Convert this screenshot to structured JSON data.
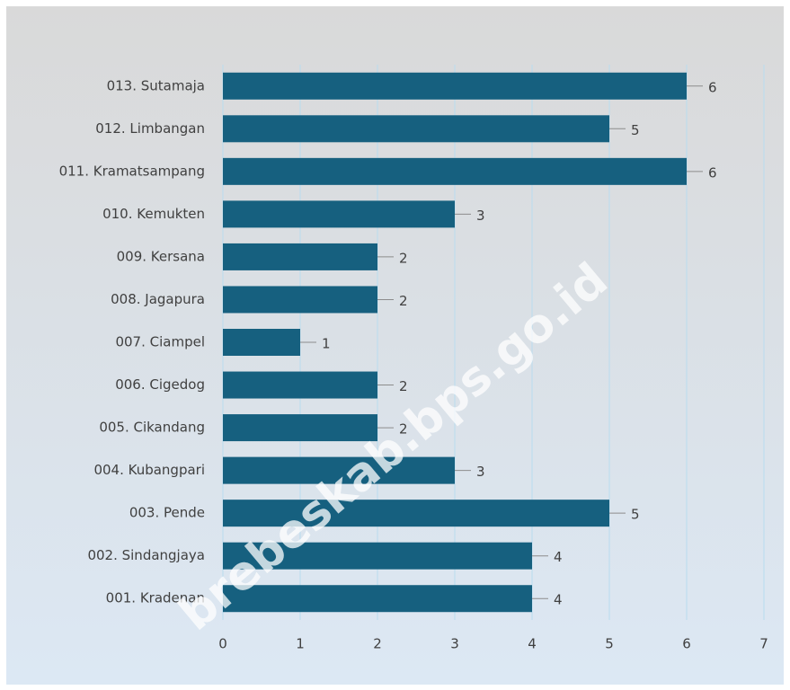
{
  "chart_data": {
    "type": "bar",
    "orientation": "horizontal",
    "categories": [
      "013. Sutamaja",
      "012. Limbangan",
      "011. Kramatsampang",
      "010. Kemukten",
      "009. Kersana",
      "008. Jagapura",
      "007. Ciampel",
      "006. Cigedog",
      "005. Cikandang",
      "004. Kubangpari",
      "003. Pende",
      "002. Sindangjaya",
      "001. Kradenan"
    ],
    "values": [
      6,
      5,
      6,
      3,
      2,
      2,
      1,
      2,
      2,
      3,
      5,
      4,
      4
    ],
    "color": "#16607f",
    "xlim": [
      0,
      7
    ],
    "xticks": [
      0,
      1,
      2,
      3,
      4,
      5,
      6,
      7
    ],
    "grid": true,
    "watermark": "brebeskab.bps.go.id"
  }
}
